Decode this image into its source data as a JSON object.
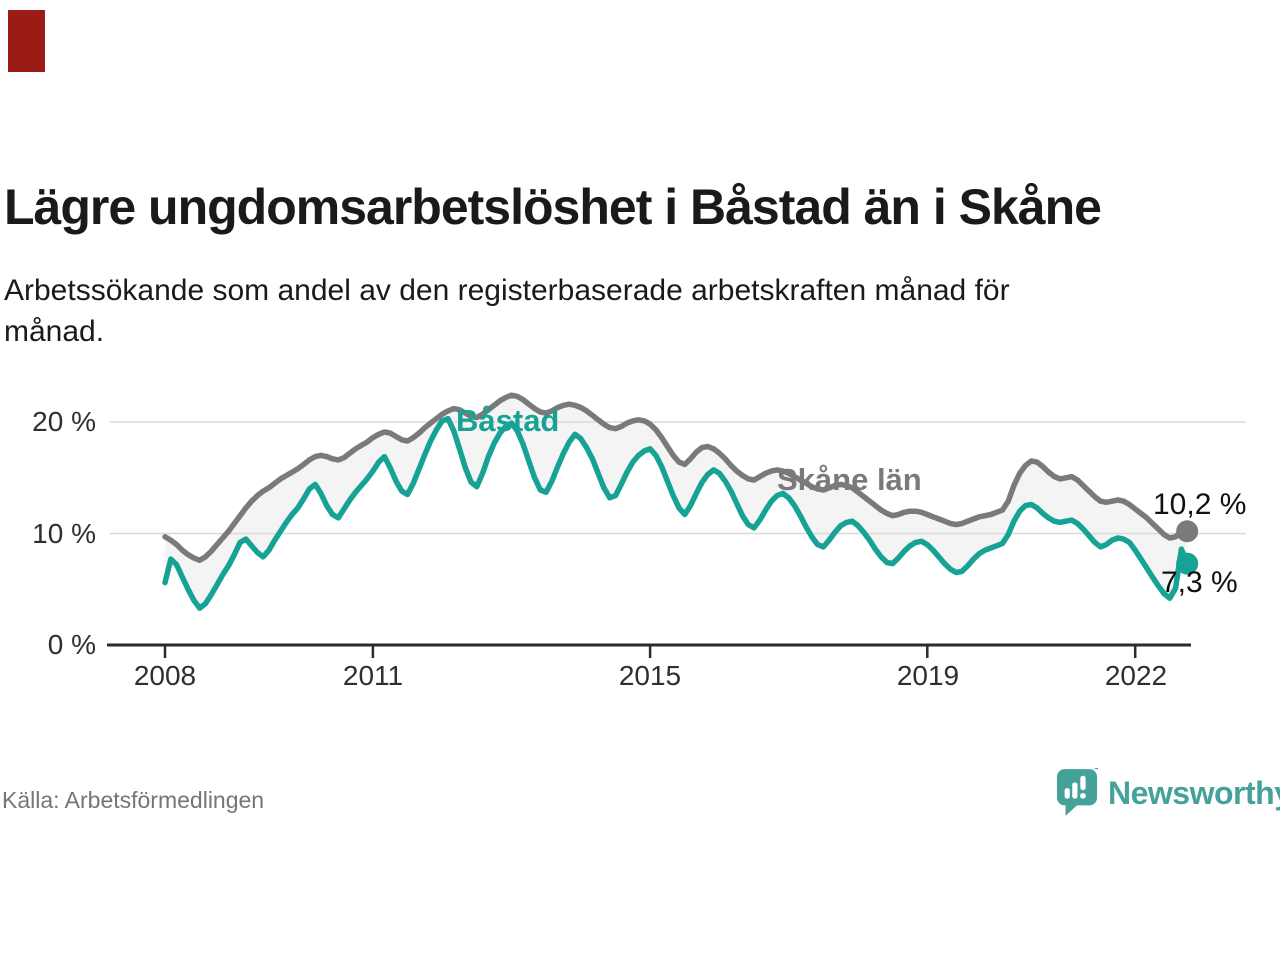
{
  "page": {
    "background": "#ffffff",
    "red_marker_color": "#9b1b17"
  },
  "header": {
    "title": "Lägre ungdomsarbetslöshet i Båstad än i Skåne",
    "subtitle": "Arbetssökande som andel av den registerbaserade arbetskraften månad för månad.",
    "subtitle_line1": "Arbetssökande som andel av den registerbaserade arbetskraften månad för",
    "subtitle_line2": "månad."
  },
  "source": {
    "label": "Källa: Arbetsförmedlingen"
  },
  "branding": {
    "name": "Newsworthy",
    "color": "#45a19a",
    "logo_icon": "speech-bubble-bar-chart-icon"
  },
  "chart_data": {
    "type": "line",
    "unit": "%",
    "frequency": "monthly",
    "start_year": 2008,
    "x_range_years": [
      2008.0,
      2022.75
    ],
    "ylim": [
      0,
      23
    ],
    "grid": true,
    "grid_color": "#d9d9d9",
    "axis_color": "#2b2b2b",
    "band_fill_between_series": "#f4f4f4",
    "legend_position": "inline-labels",
    "x_axis": {
      "ticks": [
        {
          "year": 2008,
          "label": "2008"
        },
        {
          "year": 2011,
          "label": "2011"
        },
        {
          "year": 2015,
          "label": "2015"
        },
        {
          "year": 2019,
          "label": "2019"
        },
        {
          "year": 2022,
          "label": "2022"
        }
      ]
    },
    "y_axis": {
      "ticks": [
        {
          "value": 20,
          "label": "20 %"
        },
        {
          "value": 10,
          "label": "10 %"
        },
        {
          "value": 0,
          "label": "0 %"
        }
      ]
    },
    "series": [
      {
        "name": "Båstad",
        "color": "#16a294",
        "end_label": "7,3 %",
        "end_value": 7.3,
        "values": [
          5.6,
          7.7,
          7.2,
          6.1,
          5.0,
          4.0,
          3.3,
          3.7,
          4.5,
          5.4,
          6.3,
          7.1,
          8.1,
          9.2,
          9.5,
          8.9,
          8.3,
          7.9,
          8.5,
          9.4,
          10.2,
          11.0,
          11.7,
          12.3,
          13.1,
          14.0,
          14.4,
          13.6,
          12.5,
          11.7,
          11.4,
          12.2,
          13.0,
          13.7,
          14.3,
          14.9,
          15.6,
          16.4,
          16.9,
          15.9,
          14.7,
          13.8,
          13.5,
          14.5,
          15.8,
          17.1,
          18.3,
          19.3,
          20.1,
          20.3,
          19.2,
          17.6,
          15.9,
          14.6,
          14.2,
          15.4,
          16.9,
          18.1,
          19.0,
          19.6,
          19.9,
          19.2,
          18.0,
          16.5,
          15.0,
          13.9,
          13.7,
          14.7,
          16.0,
          17.2,
          18.2,
          18.9,
          18.5,
          17.7,
          16.7,
          15.4,
          14.1,
          13.2,
          13.4,
          14.4,
          15.5,
          16.4,
          17.0,
          17.4,
          17.6,
          17.0,
          16.0,
          14.7,
          13.4,
          12.3,
          11.7,
          12.5,
          13.6,
          14.6,
          15.3,
          15.7,
          15.4,
          14.7,
          13.8,
          12.7,
          11.6,
          10.8,
          10.5,
          11.2,
          12.1,
          12.9,
          13.4,
          13.6,
          13.2,
          12.5,
          11.6,
          10.6,
          9.7,
          9.0,
          8.8,
          9.4,
          10.1,
          10.7,
          11.0,
          11.1,
          10.7,
          10.1,
          9.4,
          8.6,
          7.9,
          7.4,
          7.3,
          7.8,
          8.4,
          8.9,
          9.2,
          9.3,
          9.0,
          8.5,
          7.9,
          7.3,
          6.8,
          6.5,
          6.6,
          7.1,
          7.7,
          8.2,
          8.5,
          8.7,
          8.9,
          9.1,
          9.9,
          11.1,
          12.0,
          12.5,
          12.6,
          12.3,
          11.8,
          11.4,
          11.1,
          11.0,
          11.1,
          11.2,
          10.9,
          10.4,
          9.8,
          9.2,
          8.8,
          9.0,
          9.4,
          9.6,
          9.5,
          9.2,
          8.5,
          7.7,
          6.9,
          6.1,
          5.3,
          4.6,
          4.2,
          5.1,
          8.6,
          7.3
        ]
      },
      {
        "name": "Skåne län",
        "color": "#7a7a7a",
        "end_label": "10,2 %",
        "end_value": 10.2,
        "values": [
          9.7,
          9.4,
          9.0,
          8.5,
          8.1,
          7.8,
          7.6,
          7.9,
          8.4,
          9.0,
          9.6,
          10.2,
          10.9,
          11.6,
          12.3,
          12.9,
          13.4,
          13.8,
          14.1,
          14.5,
          14.9,
          15.2,
          15.5,
          15.8,
          16.2,
          16.6,
          16.9,
          17.0,
          16.9,
          16.7,
          16.6,
          16.8,
          17.2,
          17.6,
          17.9,
          18.2,
          18.6,
          18.9,
          19.1,
          19.0,
          18.7,
          18.4,
          18.3,
          18.6,
          19.0,
          19.5,
          19.9,
          20.3,
          20.7,
          21.0,
          21.2,
          21.1,
          20.8,
          20.5,
          20.4,
          20.7,
          21.1,
          21.5,
          21.9,
          22.2,
          22.4,
          22.3,
          22.0,
          21.6,
          21.2,
          20.9,
          20.8,
          21.0,
          21.3,
          21.5,
          21.6,
          21.5,
          21.3,
          21.0,
          20.6,
          20.2,
          19.8,
          19.5,
          19.4,
          19.6,
          19.9,
          20.1,
          20.2,
          20.1,
          19.8,
          19.3,
          18.6,
          17.8,
          17.0,
          16.4,
          16.2,
          16.7,
          17.3,
          17.7,
          17.8,
          17.6,
          17.2,
          16.7,
          16.1,
          15.6,
          15.2,
          14.9,
          14.8,
          15.1,
          15.4,
          15.6,
          15.7,
          15.6,
          15.4,
          15.1,
          14.8,
          14.5,
          14.2,
          14.0,
          13.9,
          14.1,
          14.3,
          14.4,
          14.3,
          14.1,
          13.7,
          13.3,
          12.9,
          12.5,
          12.1,
          11.8,
          11.6,
          11.7,
          11.9,
          12.0,
          12.0,
          11.9,
          11.7,
          11.5,
          11.3,
          11.1,
          10.9,
          10.8,
          10.9,
          11.1,
          11.3,
          11.5,
          11.6,
          11.7,
          11.9,
          12.1,
          12.9,
          14.3,
          15.4,
          16.1,
          16.5,
          16.4,
          16.0,
          15.5,
          15.1,
          14.9,
          15.0,
          15.1,
          14.8,
          14.3,
          13.8,
          13.3,
          12.9,
          12.8,
          12.9,
          13.0,
          12.9,
          12.6,
          12.2,
          11.8,
          11.4,
          10.9,
          10.4,
          9.9,
          9.6,
          9.7,
          10.2,
          10.2
        ]
      }
    ]
  }
}
